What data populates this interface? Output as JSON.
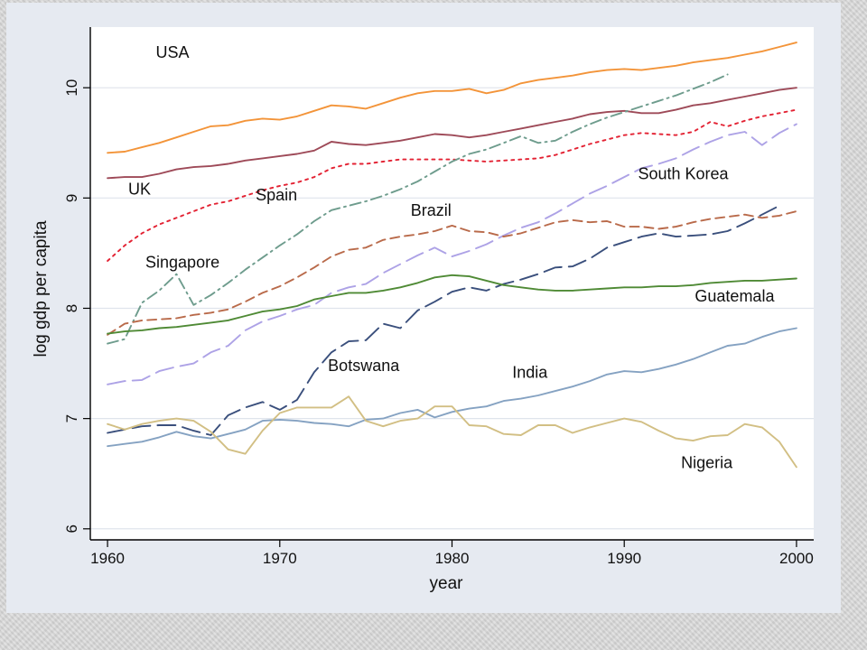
{
  "chart_data": {
    "type": "line",
    "xlabel": "year",
    "ylabel": "log gdp per capita",
    "xlim": [
      1959,
      2001
    ],
    "ylim": [
      5.9,
      10.55
    ],
    "xticks": [
      1960,
      1970,
      1980,
      1990,
      2000
    ],
    "yticks": [
      6,
      7,
      8,
      9,
      10
    ],
    "grid": "horizontal",
    "legend": "none (direct line labels)",
    "colors": {
      "USA": "#f39439",
      "UK": "#9e4a58",
      "Spain": "#e32233",
      "Singapore": "#6e9c8d",
      "South Korea": "#ada2e6",
      "Brazil": "#b96a4a",
      "Botswana": "#3a4f7c",
      "Guatemala": "#4f8a35",
      "India": "#85a2c2",
      "Nigeria": "#d2bf84"
    },
    "series": [
      {
        "name": "USA",
        "label": "USA",
        "dash": "solid",
        "x": [
          1960,
          1961,
          1962,
          1963,
          1964,
          1965,
          1966,
          1967,
          1968,
          1969,
          1970,
          1971,
          1972,
          1973,
          1974,
          1975,
          1976,
          1977,
          1978,
          1979,
          1980,
          1981,
          1982,
          1983,
          1984,
          1985,
          1986,
          1987,
          1988,
          1989,
          1990,
          1991,
          1992,
          1993,
          1994,
          1995,
          1996,
          1997,
          1998,
          1999,
          2000
        ],
        "values": [
          9.41,
          9.42,
          9.46,
          9.5,
          9.55,
          9.6,
          9.65,
          9.66,
          9.7,
          9.72,
          9.71,
          9.74,
          9.79,
          9.84,
          9.83,
          9.81,
          9.86,
          9.91,
          9.95,
          9.97,
          9.97,
          9.99,
          9.95,
          9.98,
          10.04,
          10.07,
          10.09,
          10.11,
          10.14,
          10.16,
          10.17,
          10.16,
          10.18,
          10.2,
          10.23,
          10.25,
          10.27,
          10.3,
          10.33,
          10.37,
          10.41
        ]
      },
      {
        "name": "UK",
        "label": "UK",
        "dash": "solid",
        "x": [
          1960,
          1961,
          1962,
          1963,
          1964,
          1965,
          1966,
          1967,
          1968,
          1969,
          1970,
          1971,
          1972,
          1973,
          1974,
          1975,
          1976,
          1977,
          1978,
          1979,
          1980,
          1981,
          1982,
          1983,
          1984,
          1985,
          1986,
          1987,
          1988,
          1989,
          1990,
          1991,
          1992,
          1993,
          1994,
          1995,
          1996,
          1997,
          1998,
          1999,
          2000
        ],
        "values": [
          9.18,
          9.19,
          9.19,
          9.22,
          9.26,
          9.28,
          9.29,
          9.31,
          9.34,
          9.36,
          9.38,
          9.4,
          9.43,
          9.51,
          9.49,
          9.48,
          9.5,
          9.52,
          9.55,
          9.58,
          9.57,
          9.55,
          9.57,
          9.6,
          9.63,
          9.66,
          9.69,
          9.72,
          9.76,
          9.78,
          9.79,
          9.77,
          9.77,
          9.8,
          9.84,
          9.86,
          9.89,
          9.92,
          9.95,
          9.98,
          10.0
        ]
      },
      {
        "name": "Spain",
        "label": "Spain",
        "dash": "dot",
        "x": [
          1960,
          1961,
          1962,
          1963,
          1964,
          1965,
          1966,
          1967,
          1968,
          1969,
          1970,
          1971,
          1972,
          1973,
          1974,
          1975,
          1976,
          1977,
          1978,
          1979,
          1980,
          1981,
          1982,
          1983,
          1984,
          1985,
          1986,
          1987,
          1988,
          1989,
          1990,
          1991,
          1992,
          1993,
          1994,
          1995,
          1996,
          1997,
          1998,
          1999,
          2000
        ],
        "values": [
          8.43,
          8.57,
          8.68,
          8.76,
          8.82,
          8.88,
          8.94,
          8.97,
          9.02,
          9.07,
          9.11,
          9.14,
          9.19,
          9.27,
          9.31,
          9.31,
          9.33,
          9.35,
          9.35,
          9.35,
          9.35,
          9.34,
          9.33,
          9.34,
          9.35,
          9.36,
          9.39,
          9.44,
          9.49,
          9.53,
          9.57,
          9.59,
          9.58,
          9.57,
          9.6,
          9.69,
          9.65,
          9.7,
          9.74,
          9.77,
          9.8
        ]
      },
      {
        "name": "Singapore",
        "label": "Singapore",
        "dash": "dashdot",
        "x": [
          1960,
          1961,
          1962,
          1963,
          1964,
          1965,
          1966,
          1967,
          1968,
          1969,
          1970,
          1971,
          1972,
          1973,
          1974,
          1975,
          1976,
          1977,
          1978,
          1979,
          1980,
          1981,
          1982,
          1983,
          1984,
          1985,
          1986,
          1987,
          1988,
          1989,
          1990,
          1991,
          1992,
          1993,
          1994,
          1995,
          1996
        ],
        "values": [
          7.68,
          7.72,
          8.05,
          8.16,
          8.31,
          8.03,
          8.12,
          8.23,
          8.35,
          8.46,
          8.57,
          8.67,
          8.79,
          8.89,
          8.93,
          8.97,
          9.02,
          9.08,
          9.15,
          9.24,
          9.33,
          9.4,
          9.44,
          9.5,
          9.56,
          9.5,
          9.52,
          9.6,
          9.67,
          9.73,
          9.78,
          9.83,
          9.88,
          9.93,
          9.99,
          10.05,
          10.12
        ]
      },
      {
        "name": "South Korea",
        "label": "South Korea",
        "dash": "longdash",
        "x": [
          1960,
          1961,
          1962,
          1963,
          1964,
          1965,
          1966,
          1967,
          1968,
          1969,
          1970,
          1971,
          1972,
          1973,
          1974,
          1975,
          1976,
          1977,
          1978,
          1979,
          1980,
          1981,
          1982,
          1983,
          1984,
          1985,
          1986,
          1987,
          1988,
          1989,
          1990,
          1991,
          1992,
          1993,
          1994,
          1995,
          1996,
          1997,
          1998,
          1999,
          2000
        ],
        "values": [
          7.31,
          7.34,
          7.35,
          7.43,
          7.47,
          7.5,
          7.6,
          7.66,
          7.8,
          7.88,
          7.93,
          7.99,
          8.03,
          8.14,
          8.19,
          8.22,
          8.32,
          8.4,
          8.48,
          8.55,
          8.47,
          8.52,
          8.58,
          8.66,
          8.73,
          8.78,
          8.86,
          8.95,
          9.04,
          9.11,
          9.19,
          9.27,
          9.31,
          9.36,
          9.44,
          9.51,
          9.57,
          9.6,
          9.48,
          9.59,
          9.67
        ]
      },
      {
        "name": "Brazil",
        "label": "Brazil",
        "dash": "dash",
        "x": [
          1960,
          1961,
          1962,
          1963,
          1964,
          1965,
          1966,
          1967,
          1968,
          1969,
          1970,
          1971,
          1972,
          1973,
          1974,
          1975,
          1976,
          1977,
          1978,
          1979,
          1980,
          1981,
          1982,
          1983,
          1984,
          1985,
          1986,
          1987,
          1988,
          1989,
          1990,
          1991,
          1992,
          1993,
          1994,
          1995,
          1996,
          1997,
          1998,
          1999,
          2000
        ],
        "values": [
          7.76,
          7.86,
          7.89,
          7.9,
          7.91,
          7.94,
          7.96,
          7.99,
          8.06,
          8.14,
          8.2,
          8.28,
          8.37,
          8.47,
          8.53,
          8.55,
          8.62,
          8.65,
          8.67,
          8.7,
          8.75,
          8.7,
          8.69,
          8.65,
          8.68,
          8.73,
          8.78,
          8.8,
          8.78,
          8.79,
          8.74,
          8.74,
          8.72,
          8.74,
          8.78,
          8.81,
          8.83,
          8.85,
          8.82,
          8.84,
          8.88
        ]
      },
      {
        "name": "Botswana",
        "label": "Botswana",
        "dash": "longdash",
        "x": [
          1960,
          1961,
          1962,
          1963,
          1964,
          1965,
          1966,
          1967,
          1968,
          1969,
          1970,
          1971,
          1972,
          1973,
          1974,
          1975,
          1976,
          1977,
          1978,
          1979,
          1980,
          1981,
          1982,
          1983,
          1984,
          1985,
          1986,
          1987,
          1988,
          1989,
          1990,
          1991,
          1992,
          1993,
          1994,
          1995,
          1996,
          1997,
          1998,
          1999
        ],
        "values": [
          6.87,
          6.9,
          6.93,
          6.94,
          6.94,
          6.89,
          6.85,
          7.03,
          7.1,
          7.15,
          7.08,
          7.17,
          7.42,
          7.6,
          7.7,
          7.71,
          7.86,
          7.82,
          7.98,
          8.06,
          8.15,
          8.19,
          8.16,
          8.22,
          8.26,
          8.31,
          8.37,
          8.38,
          8.45,
          8.55,
          8.6,
          8.65,
          8.68,
          8.65,
          8.66,
          8.67,
          8.7,
          8.77,
          8.85,
          8.93
        ]
      },
      {
        "name": "Guatemala",
        "label": "Guatemala",
        "dash": "solid",
        "x": [
          1960,
          1961,
          1962,
          1963,
          1964,
          1965,
          1966,
          1967,
          1968,
          1969,
          1970,
          1971,
          1972,
          1973,
          1974,
          1975,
          1976,
          1977,
          1978,
          1979,
          1980,
          1981,
          1982,
          1983,
          1984,
          1985,
          1986,
          1987,
          1988,
          1989,
          1990,
          1991,
          1992,
          1993,
          1994,
          1995,
          1996,
          1997,
          1998,
          1999,
          2000
        ],
        "values": [
          7.77,
          7.79,
          7.8,
          7.82,
          7.83,
          7.85,
          7.87,
          7.89,
          7.93,
          7.97,
          7.99,
          8.02,
          8.08,
          8.11,
          8.14,
          8.14,
          8.16,
          8.19,
          8.23,
          8.28,
          8.3,
          8.29,
          8.25,
          8.21,
          8.19,
          8.17,
          8.16,
          8.16,
          8.17,
          8.18,
          8.19,
          8.19,
          8.2,
          8.2,
          8.21,
          8.23,
          8.24,
          8.25,
          8.25,
          8.26,
          8.27
        ]
      },
      {
        "name": "India",
        "label": "India",
        "dash": "solid",
        "x": [
          1960,
          1961,
          1962,
          1963,
          1964,
          1965,
          1966,
          1967,
          1968,
          1969,
          1970,
          1971,
          1972,
          1973,
          1974,
          1975,
          1976,
          1977,
          1978,
          1979,
          1980,
          1981,
          1982,
          1983,
          1984,
          1985,
          1986,
          1987,
          1988,
          1989,
          1990,
          1991,
          1992,
          1993,
          1994,
          1995,
          1996,
          1997,
          1998,
          1999,
          2000
        ],
        "values": [
          6.75,
          6.77,
          6.79,
          6.83,
          6.88,
          6.84,
          6.82,
          6.86,
          6.9,
          6.98,
          6.99,
          6.98,
          6.96,
          6.95,
          6.93,
          6.99,
          7.0,
          7.05,
          7.08,
          7.01,
          7.06,
          7.09,
          7.11,
          7.16,
          7.18,
          7.21,
          7.25,
          7.29,
          7.34,
          7.4,
          7.43,
          7.42,
          7.45,
          7.49,
          7.54,
          7.6,
          7.66,
          7.68,
          7.74,
          7.79,
          7.82
        ]
      },
      {
        "name": "Nigeria",
        "label": "Nigeria",
        "dash": "solid",
        "x": [
          1960,
          1961,
          1962,
          1963,
          1964,
          1965,
          1966,
          1967,
          1968,
          1969,
          1970,
          1971,
          1972,
          1973,
          1974,
          1975,
          1976,
          1977,
          1978,
          1979,
          1980,
          1981,
          1982,
          1983,
          1984,
          1985,
          1986,
          1987,
          1988,
          1989,
          1990,
          1991,
          1992,
          1993,
          1994,
          1995,
          1996,
          1997,
          1998,
          1999,
          2000
        ],
        "values": [
          6.95,
          6.9,
          6.95,
          6.98,
          7.0,
          6.98,
          6.88,
          6.72,
          6.68,
          6.89,
          7.05,
          7.1,
          7.1,
          7.1,
          7.2,
          6.98,
          6.93,
          6.98,
          7.0,
          7.11,
          7.11,
          6.94,
          6.93,
          6.86,
          6.85,
          6.94,
          6.94,
          6.87,
          6.92,
          6.96,
          7.0,
          6.97,
          6.89,
          6.82,
          6.8,
          6.84,
          6.85,
          6.95,
          6.92,
          6.79,
          6.56
        ]
      }
    ]
  }
}
